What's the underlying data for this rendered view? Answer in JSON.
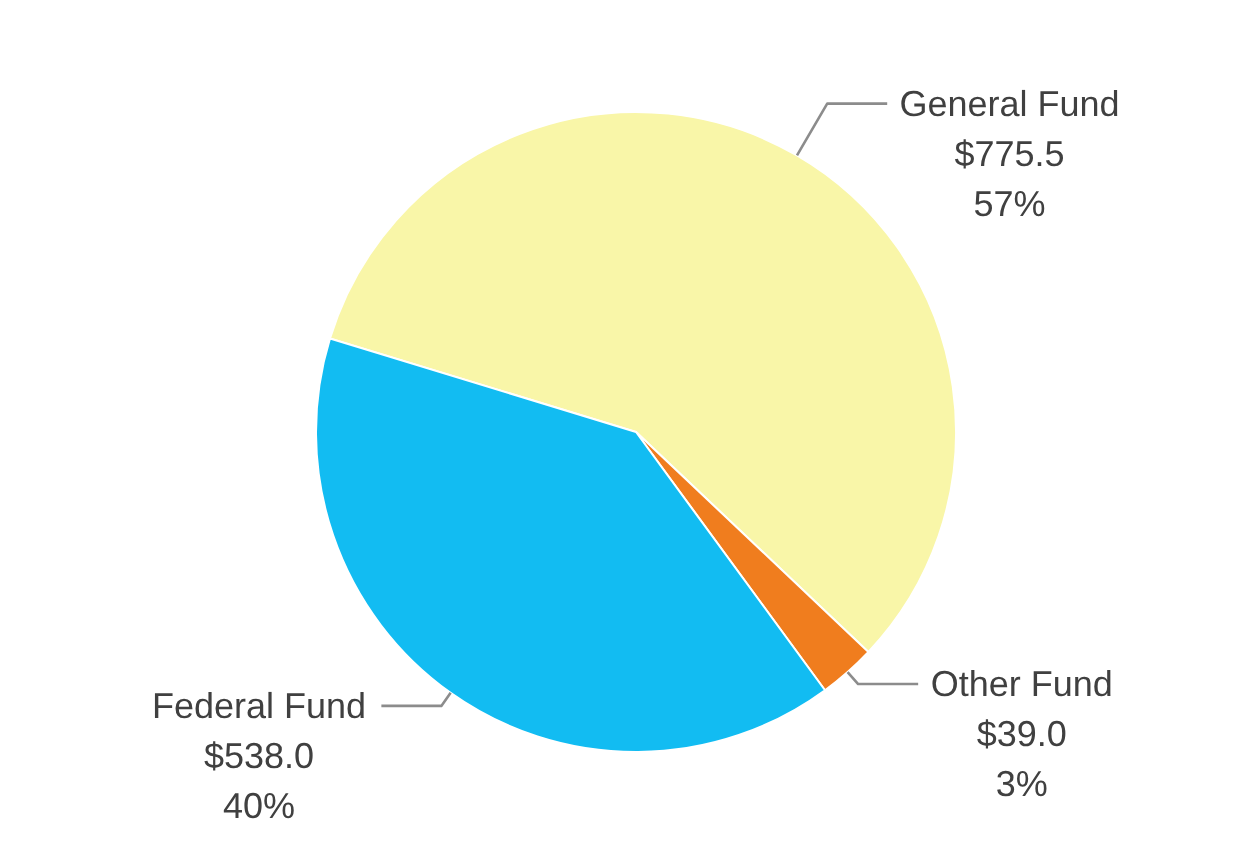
{
  "chart_data": {
    "type": "pie",
    "categories": [
      "General Fund",
      "Other Fund",
      "Federal Fund"
    ],
    "values": [
      775.5,
      39.0,
      538.0
    ],
    "colors": [
      "#f9f6a8",
      "#f07d1e",
      "#12bcf2"
    ],
    "value_labels": [
      "$775.5\n57%",
      "$39.0\n3%",
      "$538.0\n40%"
    ]
  }
}
